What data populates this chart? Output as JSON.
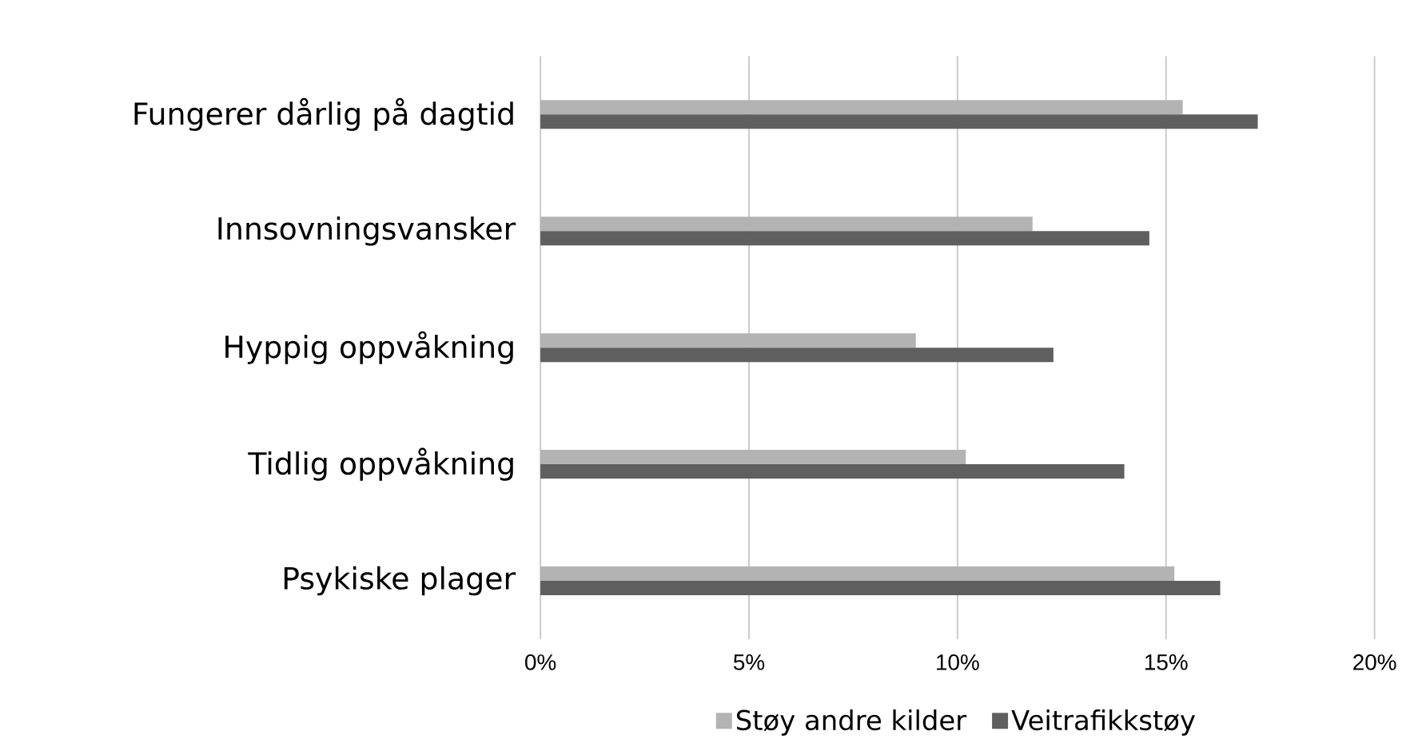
{
  "chart_data": {
    "type": "bar",
    "orientation": "horizontal",
    "categories": [
      "Fungerer dårlig på dagtid",
      "Innsovningsvansker",
      "Hyppig oppvåkning",
      "Tidlig oppvåkning",
      "Psykiske plager"
    ],
    "series": [
      {
        "name": "Støy andre kilder",
        "color": "#b3b3b3",
        "values": [
          15.4,
          11.8,
          9.0,
          10.2,
          15.2
        ]
      },
      {
        "name": "Veitrafikkstøy",
        "color": "#5f5f5f",
        "values": [
          17.2,
          14.6,
          12.3,
          14.0,
          16.3
        ]
      }
    ],
    "xlim": [
      0,
      20
    ],
    "xticks": [
      {
        "value": 0,
        "label": "0%"
      },
      {
        "value": 5,
        "label": "5%"
      },
      {
        "value": 10,
        "label": "10%"
      },
      {
        "value": 15,
        "label": "15%"
      },
      {
        "value": 20,
        "label": "20%"
      }
    ],
    "grid": "x",
    "legend": "bottom"
  }
}
